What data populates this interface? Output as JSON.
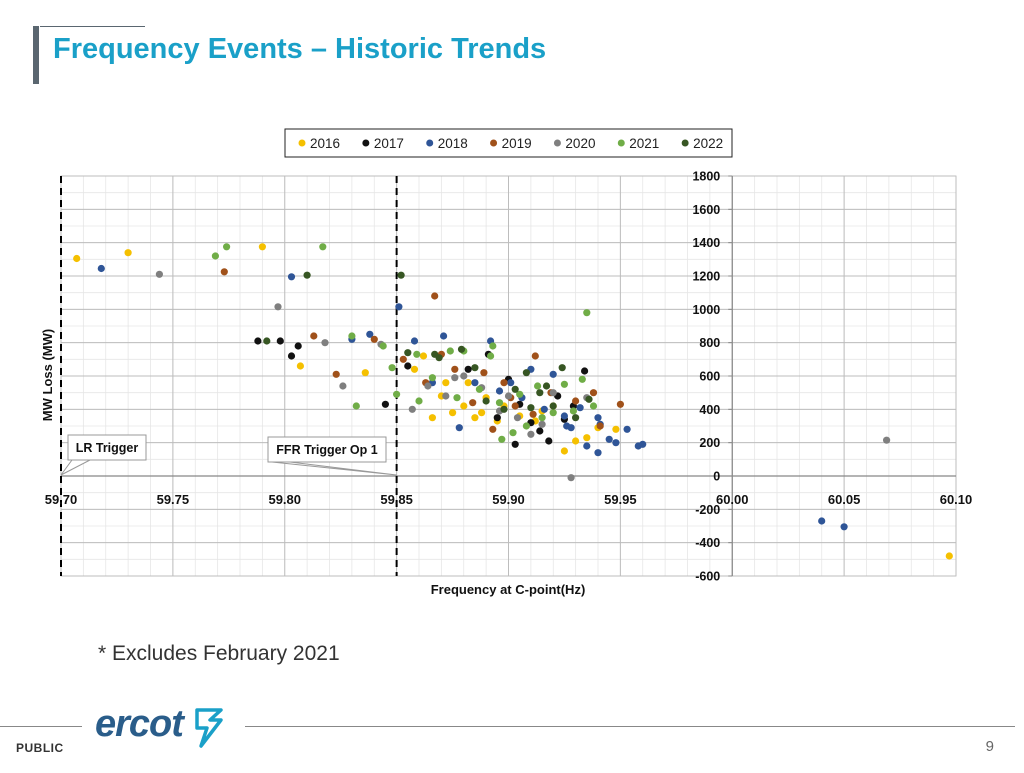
{
  "header": {
    "title": "Frequency Events – Historic Trends"
  },
  "note": "* Excludes February 2021",
  "footer": {
    "classification": "PUBLIC",
    "page_number": "9",
    "logo_text": "ercot"
  },
  "chart_data": {
    "type": "scatter",
    "title": "",
    "xlabel": "Frequency  at C-point(Hz)",
    "ylabel": "MW Loss (MW)",
    "xlim": [
      59.7,
      60.1
    ],
    "ylim": [
      -600,
      1800
    ],
    "x_ticks": [
      "59.70",
      "59.75",
      "59.80",
      "59.85",
      "59.90",
      "59.95",
      "60.00",
      "60.05",
      "60.10"
    ],
    "y_ticks": [
      "1800",
      "1600",
      "1400",
      "1200",
      "1000",
      "800",
      "600",
      "400",
      "200",
      "0",
      "-200",
      "-400",
      "-600"
    ],
    "grid": true,
    "legend_position": "top",
    "reference_lines": [
      {
        "x": 59.7,
        "label": "LR Trigger",
        "style": "dashed"
      },
      {
        "x": 59.85,
        "label": "FFR Trigger Op 1",
        "style": "dashed"
      }
    ],
    "series": [
      {
        "name": "2016",
        "color": "#f5c000",
        "points": [
          [
            59.707,
            1305
          ],
          [
            59.73,
            1340
          ],
          [
            59.79,
            1375
          ],
          [
            59.807,
            660
          ],
          [
            59.836,
            620
          ],
          [
            59.862,
            720
          ],
          [
            59.872,
            560
          ],
          [
            59.875,
            380
          ],
          [
            59.88,
            420
          ],
          [
            59.885,
            350
          ],
          [
            59.89,
            470
          ],
          [
            59.898,
            420
          ],
          [
            59.905,
            360
          ],
          [
            59.915,
            390
          ],
          [
            59.92,
            420
          ],
          [
            59.925,
            150
          ],
          [
            59.93,
            210
          ],
          [
            59.935,
            230
          ],
          [
            59.94,
            290
          ],
          [
            59.948,
            280
          ],
          [
            60.097,
            -480
          ],
          [
            59.866,
            350
          ],
          [
            59.882,
            560
          ],
          [
            59.895,
            330
          ],
          [
            59.858,
            640
          ],
          [
            59.87,
            480
          ],
          [
            59.912,
            330
          ],
          [
            59.888,
            380
          ]
        ]
      },
      {
        "name": "2017",
        "color": "#111111",
        "points": [
          [
            59.788,
            810
          ],
          [
            59.798,
            810
          ],
          [
            59.803,
            720
          ],
          [
            59.806,
            780
          ],
          [
            59.845,
            430
          ],
          [
            59.855,
            660
          ],
          [
            59.882,
            640
          ],
          [
            59.891,
            730
          ],
          [
            59.9,
            580
          ],
          [
            59.903,
            190
          ],
          [
            59.91,
            320
          ],
          [
            59.914,
            270
          ],
          [
            59.918,
            210
          ],
          [
            59.925,
            340
          ],
          [
            59.929,
            420
          ],
          [
            59.934,
            630
          ],
          [
            59.922,
            480
          ],
          [
            59.905,
            430
          ],
          [
            59.895,
            350
          ]
        ]
      },
      {
        "name": "2018",
        "color": "#2f5597",
        "points": [
          [
            59.718,
            1245
          ],
          [
            59.803,
            1195
          ],
          [
            59.83,
            820
          ],
          [
            59.838,
            850
          ],
          [
            59.851,
            1015
          ],
          [
            59.858,
            810
          ],
          [
            59.871,
            840
          ],
          [
            59.878,
            290
          ],
          [
            59.885,
            560
          ],
          [
            59.892,
            810
          ],
          [
            59.901,
            560
          ],
          [
            59.91,
            640
          ],
          [
            59.92,
            610
          ],
          [
            59.925,
            360
          ],
          [
            59.928,
            290
          ],
          [
            59.932,
            410
          ],
          [
            59.94,
            350
          ],
          [
            59.941,
            310
          ],
          [
            59.945,
            220
          ],
          [
            59.953,
            280
          ],
          [
            59.958,
            180
          ],
          [
            59.96,
            190
          ],
          [
            59.948,
            200
          ],
          [
            59.94,
            140
          ],
          [
            59.935,
            180
          ],
          [
            60.04,
            -270
          ],
          [
            60.05,
            -305
          ],
          [
            59.926,
            300
          ],
          [
            59.916,
            400
          ],
          [
            59.906,
            470
          ],
          [
            59.896,
            510
          ],
          [
            59.866,
            560
          ]
        ]
      },
      {
        "name": "2019",
        "color": "#a0511a",
        "points": [
          [
            59.773,
            1225
          ],
          [
            59.813,
            840
          ],
          [
            59.823,
            610
          ],
          [
            59.84,
            820
          ],
          [
            59.853,
            700
          ],
          [
            59.867,
            1080
          ],
          [
            59.87,
            730
          ],
          [
            59.876,
            640
          ],
          [
            59.889,
            620
          ],
          [
            59.893,
            280
          ],
          [
            59.898,
            560
          ],
          [
            59.903,
            420
          ],
          [
            59.912,
            720
          ],
          [
            59.919,
            500
          ],
          [
            59.93,
            450
          ],
          [
            59.938,
            500
          ],
          [
            59.941,
            300
          ],
          [
            59.95,
            430
          ],
          [
            59.911,
            370
          ],
          [
            59.901,
            470
          ],
          [
            59.884,
            440
          ],
          [
            59.863,
            560
          ]
        ]
      },
      {
        "name": "2020",
        "color": "#7f7f7f",
        "points": [
          [
            59.744,
            1210
          ],
          [
            59.797,
            1015
          ],
          [
            59.818,
            800
          ],
          [
            59.826,
            540
          ],
          [
            59.843,
            790
          ],
          [
            59.857,
            400
          ],
          [
            59.864,
            540
          ],
          [
            59.872,
            480
          ],
          [
            59.88,
            600
          ],
          [
            59.888,
            530
          ],
          [
            59.9,
            480
          ],
          [
            59.904,
            350
          ],
          [
            59.91,
            250
          ],
          [
            59.92,
            500
          ],
          [
            59.928,
            -10
          ],
          [
            59.935,
            470
          ],
          [
            60.069,
            215
          ],
          [
            59.915,
            310
          ],
          [
            59.896,
            390
          ],
          [
            59.876,
            590
          ]
        ]
      },
      {
        "name": "2021",
        "color": "#70ad47",
        "points": [
          [
            59.769,
            1320
          ],
          [
            59.774,
            1375
          ],
          [
            59.817,
            1375
          ],
          [
            59.83,
            840
          ],
          [
            59.832,
            420
          ],
          [
            59.848,
            650
          ],
          [
            59.85,
            490
          ],
          [
            59.859,
            730
          ],
          [
            59.866,
            590
          ],
          [
            59.874,
            750
          ],
          [
            59.88,
            750
          ],
          [
            59.893,
            780
          ],
          [
            59.897,
            220
          ],
          [
            59.908,
            300
          ],
          [
            59.913,
            540
          ],
          [
            59.925,
            550
          ],
          [
            59.933,
            580
          ],
          [
            59.935,
            980
          ],
          [
            59.938,
            420
          ],
          [
            59.92,
            380
          ],
          [
            59.905,
            490
          ],
          [
            59.896,
            440
          ],
          [
            59.887,
            520
          ],
          [
            59.877,
            470
          ],
          [
            59.86,
            450
          ],
          [
            59.844,
            780
          ],
          [
            59.915,
            350
          ],
          [
            59.902,
            260
          ],
          [
            59.929,
            390
          ],
          [
            59.892,
            720
          ]
        ]
      },
      {
        "name": "2022",
        "color": "#375623",
        "points": [
          [
            59.792,
            810
          ],
          [
            59.81,
            1205
          ],
          [
            59.852,
            1205
          ],
          [
            59.855,
            740
          ],
          [
            59.869,
            710
          ],
          [
            59.879,
            760
          ],
          [
            59.89,
            450
          ],
          [
            59.903,
            520
          ],
          [
            59.908,
            620
          ],
          [
            59.914,
            500
          ],
          [
            59.92,
            420
          ],
          [
            59.924,
            650
          ],
          [
            59.936,
            460
          ],
          [
            59.91,
            410
          ],
          [
            59.898,
            400
          ],
          [
            59.885,
            650
          ],
          [
            59.867,
            730
          ],
          [
            59.93,
            350
          ],
          [
            59.917,
            540
          ]
        ]
      }
    ]
  }
}
